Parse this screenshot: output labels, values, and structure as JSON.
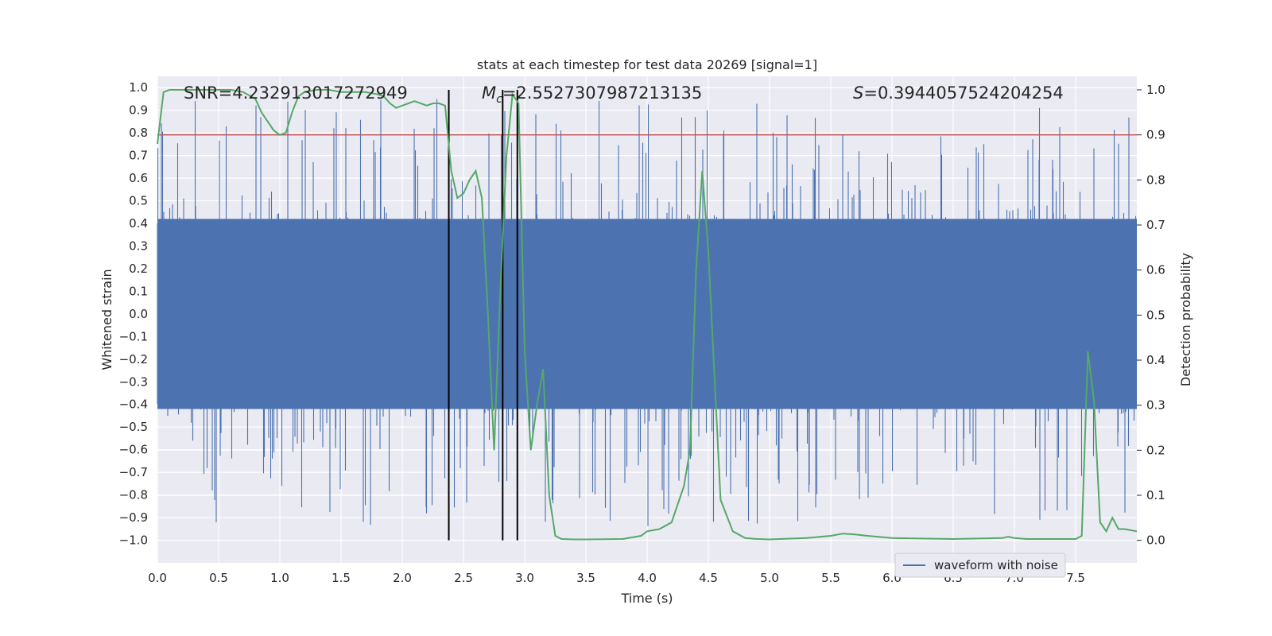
{
  "chart_data": {
    "type": "line",
    "title": "stats at each timestep for test data 20269 [signal=1]",
    "xlabel": "Time (s)",
    "ylabel_left": "Whitened strain",
    "ylabel_right": "Detection probability",
    "xlim": [
      0.0,
      8.0
    ],
    "ylim_left": [
      -1.1,
      1.05
    ],
    "ylim_right": [
      -0.05,
      1.03
    ],
    "x_ticks": [
      "0.0",
      "0.5",
      "1.0",
      "1.5",
      "2.0",
      "2.5",
      "3.0",
      "3.5",
      "4.0",
      "4.5",
      "5.0",
      "5.5",
      "6.0",
      "6.5",
      "7.0",
      "7.5"
    ],
    "y_ticks_left": [
      "1.0",
      "0.9",
      "0.8",
      "0.7",
      "0.6",
      "0.5",
      "0.4",
      "0.3",
      "0.2",
      "0.1",
      "0.0",
      "-0.1",
      "-0.2",
      "-0.3",
      "-0.4",
      "-0.5",
      "-0.6",
      "-0.7",
      "-0.8",
      "-0.9",
      "-1.0"
    ],
    "y_ticks_right": [
      "1.0",
      "0.9",
      "0.8",
      "0.7",
      "0.6",
      "0.5",
      "0.4",
      "0.3",
      "0.2",
      "0.1",
      "0.0"
    ],
    "annotations": {
      "snr": "SNR=4.232913017272949",
      "mc_symbol": "M",
      "mc_sub": "c",
      "mc_value": "=2.5527307987213135",
      "s_symbol": "S",
      "s_value": "=0.3944057524204254"
    },
    "threshold": {
      "value": 0.9,
      "axis": "right",
      "color": "#c44e52"
    },
    "vertical_markers": {
      "x": [
        2.38,
        2.82,
        2.94
      ],
      "color": "#000000"
    },
    "waveform": {
      "name": "waveform with noise",
      "color": "#4c72b0",
      "duration_s": 8.0,
      "core_envelope": 0.42,
      "peak_range": [
        -0.94,
        0.95
      ]
    },
    "series": [
      {
        "name": "detection probability",
        "axis": "right",
        "color": "#55a868",
        "x": [
          0.0,
          0.05,
          0.1,
          0.2,
          0.4,
          0.6,
          0.7,
          0.8,
          0.85,
          0.9,
          0.95,
          1.0,
          1.05,
          1.1,
          1.15,
          1.2,
          1.3,
          1.4,
          1.5,
          1.6,
          1.7,
          1.8,
          1.85,
          1.9,
          1.95,
          2.0,
          2.05,
          2.1,
          2.2,
          2.25,
          2.3,
          2.35,
          2.4,
          2.45,
          2.5,
          2.55,
          2.6,
          2.65,
          2.7,
          2.75,
          2.8,
          2.85,
          2.9,
          2.95,
          3.0,
          3.05,
          3.1,
          3.15,
          3.2,
          3.25,
          3.3,
          3.4,
          3.5,
          3.8,
          3.95,
          4.0,
          4.1,
          4.2,
          4.3,
          4.35,
          4.4,
          4.45,
          4.5,
          4.6,
          4.7,
          4.8,
          4.9,
          5.0,
          5.3,
          5.5,
          5.6,
          5.7,
          5.8,
          6.0,
          6.5,
          6.9,
          6.95,
          7.0,
          7.1,
          7.5,
          7.55,
          7.6,
          7.65,
          7.7,
          7.75,
          7.8,
          7.85,
          7.9,
          8.0
        ],
        "values": [
          0.88,
          0.995,
          1.0,
          1.0,
          1.0,
          1.0,
          0.995,
          0.98,
          0.95,
          0.93,
          0.91,
          0.9,
          0.905,
          0.95,
          0.985,
          0.995,
          1.0,
          1.0,
          0.995,
          0.995,
          0.995,
          0.99,
          0.985,
          0.97,
          0.96,
          0.965,
          0.97,
          0.975,
          0.965,
          0.97,
          0.97,
          0.965,
          0.82,
          0.76,
          0.77,
          0.8,
          0.82,
          0.76,
          0.5,
          0.2,
          0.55,
          0.85,
          0.99,
          0.97,
          0.42,
          0.2,
          0.3,
          0.38,
          0.1,
          0.01,
          0.003,
          0.002,
          0.002,
          0.003,
          0.01,
          0.02,
          0.025,
          0.04,
          0.12,
          0.2,
          0.6,
          0.82,
          0.64,
          0.09,
          0.02,
          0.005,
          0.003,
          0.002,
          0.005,
          0.01,
          0.015,
          0.013,
          0.01,
          0.005,
          0.003,
          0.005,
          0.008,
          0.005,
          0.003,
          0.003,
          0.01,
          0.42,
          0.31,
          0.04,
          0.02,
          0.05,
          0.025,
          0.025,
          0.02
        ]
      }
    ],
    "legend": {
      "entries": [
        "waveform with noise"
      ],
      "position": "lower-right"
    },
    "grid": true
  }
}
